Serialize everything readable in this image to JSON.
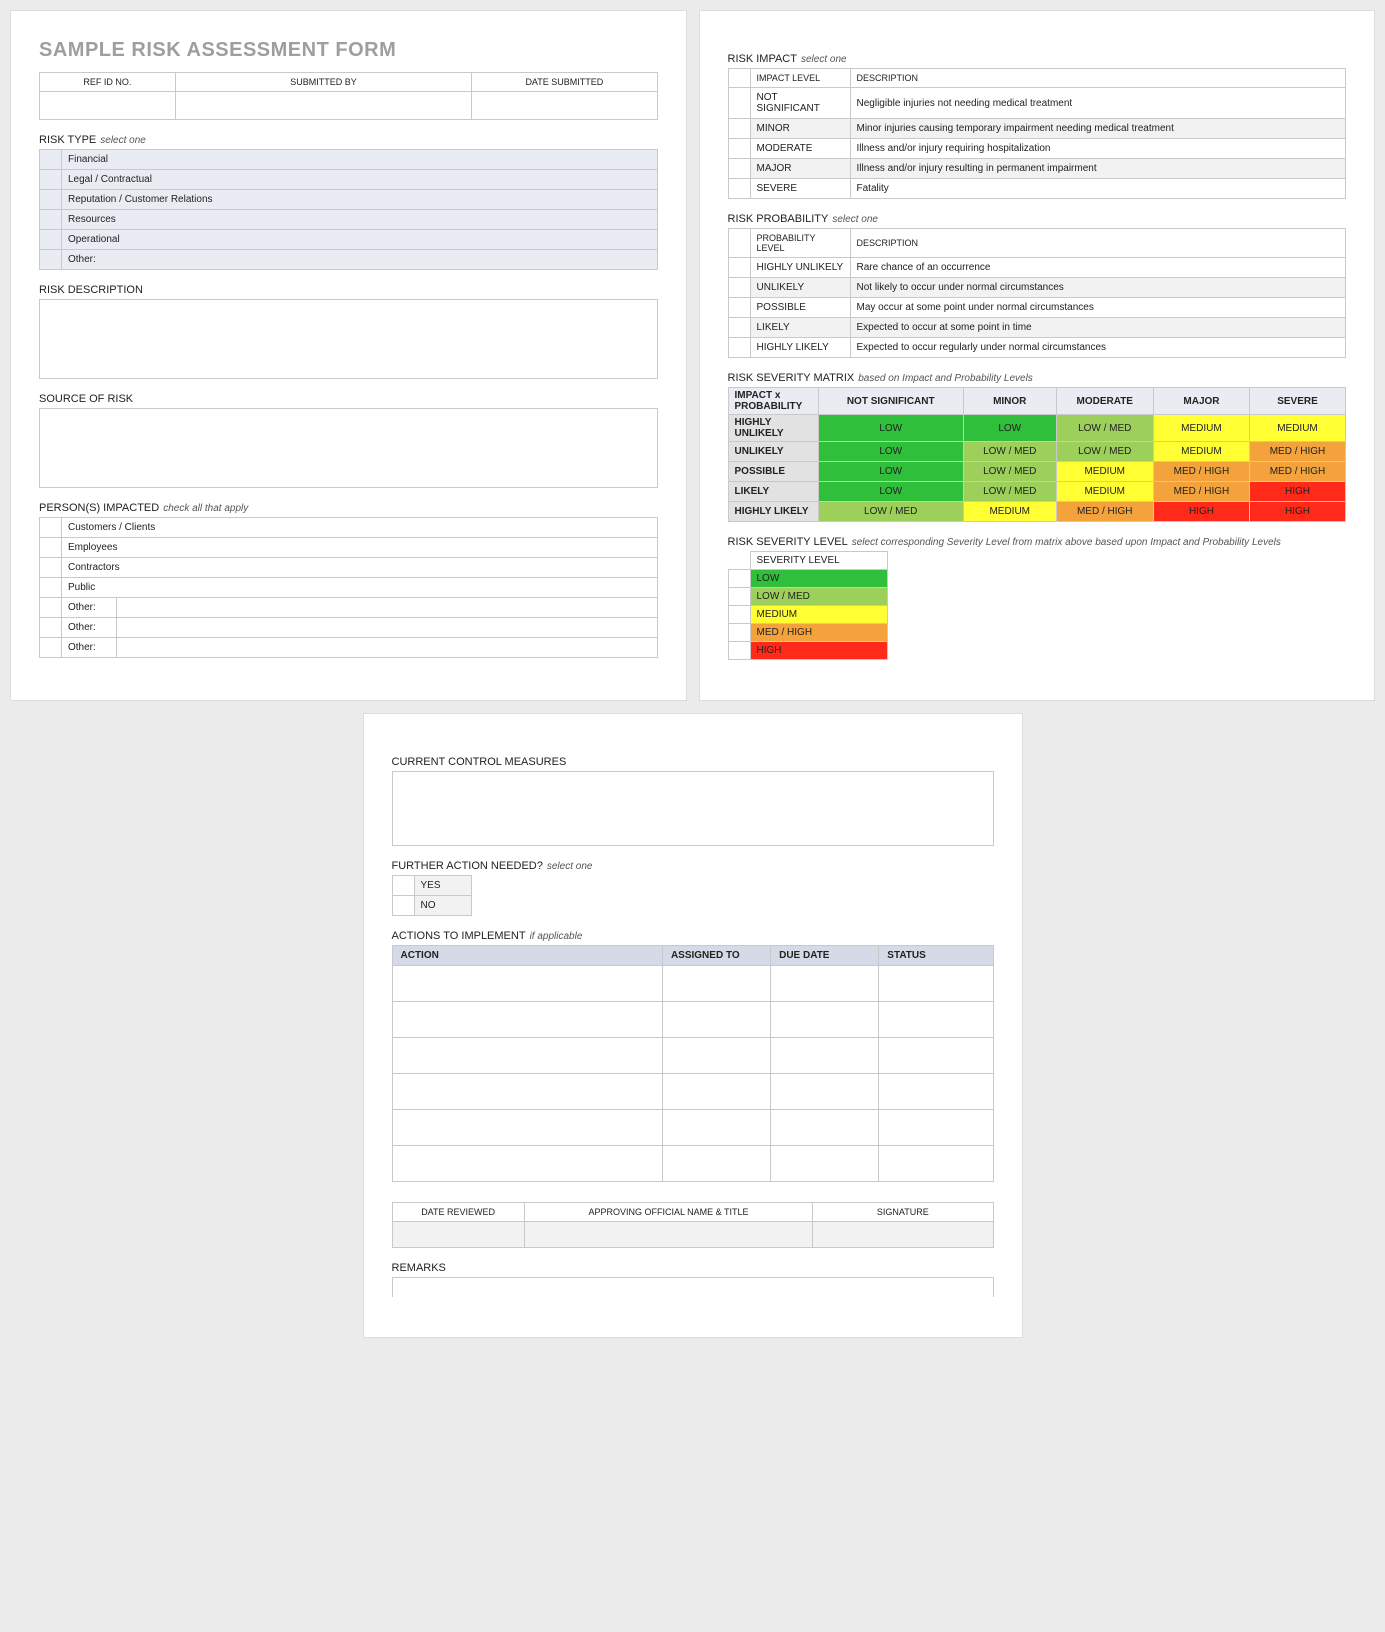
{
  "title": "SAMPLE RISK ASSESSMENT FORM",
  "header_fields": {
    "ref_id": "REF ID NO.",
    "submitted_by": "SUBMITTED BY",
    "date_submitted": "DATE SUBMITTED"
  },
  "risk_type": {
    "label": "RISK TYPE",
    "hint": "select one",
    "options": [
      "Financial",
      "Legal / Contractual",
      "Reputation / Customer Relations",
      "Resources",
      "Operational"
    ],
    "other_label": "Other:"
  },
  "risk_description": {
    "label": "RISK DESCRIPTION"
  },
  "source_of_risk": {
    "label": "SOURCE OF RISK"
  },
  "persons_impacted": {
    "label": "PERSON(S) IMPACTED",
    "hint": "check all that apply",
    "options": [
      "Customers / Clients",
      "Employees",
      "Contractors",
      "Public"
    ],
    "other_label": "Other:",
    "other_count": 3
  },
  "risk_impact": {
    "label": "RISK IMPACT",
    "hint": "select one",
    "col_level": "IMPACT LEVEL",
    "col_desc": "DESCRIPTION",
    "rows": [
      {
        "level": "NOT SIGNIFICANT",
        "desc": "Negligible injuries not needing medical treatment"
      },
      {
        "level": "MINOR",
        "desc": "Minor injuries causing temporary impairment needing medical treatment"
      },
      {
        "level": "MODERATE",
        "desc": "Illness and/or injury requiring hospitalization"
      },
      {
        "level": "MAJOR",
        "desc": "Illness and/or injury resulting in permanent impairment"
      },
      {
        "level": "SEVERE",
        "desc": "Fatality"
      }
    ]
  },
  "risk_probability": {
    "label": "RISK PROBABILITY",
    "hint": "select one",
    "col_level": "PROBABILITY LEVEL",
    "col_desc": "DESCRIPTION",
    "rows": [
      {
        "level": "HIGHLY UNLIKELY",
        "desc": "Rare chance of an occurrence"
      },
      {
        "level": "UNLIKELY",
        "desc": "Not likely to occur under normal circumstances"
      },
      {
        "level": "POSSIBLE",
        "desc": "May occur at some point under normal circumstances"
      },
      {
        "level": "LIKELY",
        "desc": "Expected to occur at some point in time"
      },
      {
        "level": "HIGHLY LIKELY",
        "desc": "Expected to occur regularly under normal circumstances"
      }
    ]
  },
  "matrix": {
    "label": "RISK SEVERITY MATRIX",
    "hint": "based on Impact and Probability Levels",
    "corner": "IMPACT x PROBABILITY",
    "cols": [
      "NOT SIGNIFICANT",
      "MINOR",
      "MODERATE",
      "MAJOR",
      "SEVERE"
    ],
    "rows": [
      "HIGHLY UNLIKELY",
      "UNLIKELY",
      "POSSIBLE",
      "LIKELY",
      "HIGHLY LIKELY"
    ],
    "cells": [
      [
        "LOW",
        "LOW",
        "LOW / MED",
        "MEDIUM",
        "MEDIUM"
      ],
      [
        "LOW",
        "LOW / MED",
        "LOW / MED",
        "MEDIUM",
        "MED / HIGH"
      ],
      [
        "LOW",
        "LOW / MED",
        "MEDIUM",
        "MED / HIGH",
        "MED / HIGH"
      ],
      [
        "LOW",
        "LOW / MED",
        "MEDIUM",
        "MED / HIGH",
        "HIGH"
      ],
      [
        "LOW / MED",
        "MEDIUM",
        "MED / HIGH",
        "HIGH",
        "HIGH"
      ]
    ],
    "colors": {
      "LOW": "#2fbf3a",
      "LOW / MED": "#9cd05a",
      "MEDIUM": "#ffff33",
      "MED / HIGH": "#f3a23c",
      "HIGH": "#ff2a1a"
    }
  },
  "severity_level": {
    "label": "RISK SEVERITY LEVEL",
    "hint": "select corresponding Severity Level from matrix above based upon Impact and Probability Levels",
    "col": "SEVERITY LEVEL",
    "levels": [
      "LOW",
      "LOW / MED",
      "MEDIUM",
      "MED / HIGH",
      "HIGH"
    ]
  },
  "control_measures": {
    "label": "CURRENT CONTROL MEASURES"
  },
  "further_action": {
    "label": "FURTHER ACTION NEEDED?",
    "hint": "select one",
    "options": [
      "YES",
      "NO"
    ]
  },
  "actions": {
    "label": "ACTIONS TO IMPLEMENT",
    "hint": "if applicable",
    "cols": [
      "ACTION",
      "ASSIGNED TO",
      "DUE DATE",
      "STATUS"
    ],
    "blank_rows": 6
  },
  "signoff": {
    "date_reviewed": "DATE REVIEWED",
    "approving": "APPROVING OFFICIAL NAME & TITLE",
    "signature": "SIGNATURE"
  },
  "remarks": {
    "label": "REMARKS"
  }
}
